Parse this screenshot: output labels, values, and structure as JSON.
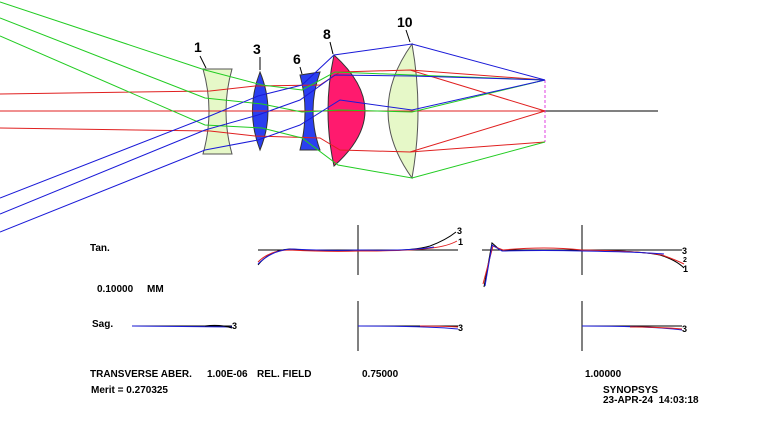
{
  "colors": {
    "lens_light": "#e6f8c8",
    "lens_blue": "#2a3ff0",
    "lens_magenta": "#ff1a6e",
    "ray_red": "#e02020",
    "ray_green": "#22cc22",
    "ray_blue": "#1a1ad8",
    "axis": "#000000",
    "image_plane": "#e040e0"
  },
  "surface_labels": [
    "1",
    "3",
    "6",
    "8",
    "10"
  ],
  "plot_labels": {
    "tan": "Tan.",
    "sag": "Sag.",
    "scale_value": "0.10000",
    "scale_unit": "MM",
    "curve_tags_tan_0p75": [
      "3",
      "1"
    ],
    "curve_tags_tan_1p0": [
      "3",
      "2",
      "1"
    ],
    "curve_tags_sag": [
      "3",
      "3",
      "3"
    ]
  },
  "footer": {
    "transverse": "TRANSVERSE ABER.",
    "wavelength": "1.00E-06",
    "rel_field": "REL. FIELD",
    "merit": "Merit = 0.270325",
    "fields": [
      "0.75000",
      "1.00000"
    ],
    "synopsys": "SYNOPSYS",
    "date": "23-APR-24  14:03:18"
  }
}
